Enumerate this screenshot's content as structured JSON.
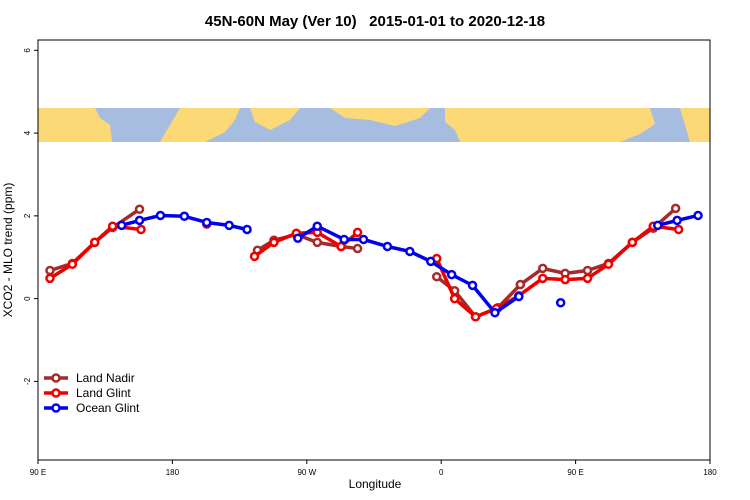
{
  "chart_data": {
    "type": "line",
    "title": "45N-60N May (Ver 10)   2015-01-01 to 2020-12-18",
    "x_label": "Longitude",
    "y_label": "XCO2 - MLO trend (ppm)",
    "xlim": [
      90,
      540
    ],
    "xticks": [
      {
        "value": 90,
        "label": "90 E"
      },
      {
        "value": 180,
        "label": "180"
      },
      {
        "value": 270,
        "label": "90 W"
      },
      {
        "value": 360,
        "label": "0"
      },
      {
        "value": 450,
        "label": "90 E"
      },
      {
        "value": 540,
        "label": "180"
      }
    ],
    "ylim": [
      -3.9,
      6.25
    ],
    "yticks": [
      -2,
      0,
      2,
      4,
      6
    ],
    "legend": "bottom-left",
    "series": [
      {
        "name": "Land Nadir",
        "color": "#a52a2a",
        "x": [
          98,
          113,
          128,
          140,
          158,
          null,
          237,
          248,
          263,
          277,
          293,
          304,
          null,
          357,
          369,
          383,
          398,
          413,
          428,
          443,
          458,
          472,
          488,
          502,
          517
        ],
        "values": [
          0.68,
          0.85,
          1.36,
          1.72,
          2.16,
          null,
          1.17,
          1.41,
          1.55,
          1.36,
          1.26,
          1.21,
          null,
          0.53,
          0.19,
          -0.44,
          -0.22,
          0.34,
          0.73,
          0.61,
          0.68,
          0.85,
          1.36,
          1.7,
          2.18
        ]
      },
      {
        "name": "Land Glint",
        "color": "#ee0000",
        "x": [
          98,
          113,
          128,
          140,
          159,
          null,
          203,
          null,
          235,
          248,
          263,
          277,
          293,
          304,
          null,
          357,
          369,
          383,
          397,
          412,
          428,
          443,
          458,
          472,
          488,
          502,
          519
        ],
        "values": [
          0.49,
          0.83,
          1.36,
          1.75,
          1.67,
          null,
          1.8,
          null,
          1.02,
          1.36,
          1.58,
          1.6,
          1.26,
          1.6,
          null,
          0.97,
          0.0,
          -0.44,
          -0.24,
          0.07,
          0.49,
          0.46,
          0.49,
          0.83,
          1.36,
          1.75,
          1.67
        ]
      },
      {
        "name": "Ocean Glint",
        "color": "#0000ee",
        "x": [
          146,
          158,
          172,
          188,
          203,
          218,
          230,
          null,
          264,
          277,
          295,
          308,
          324,
          339,
          353,
          367,
          381,
          396,
          412,
          null,
          440,
          null,
          505,
          518,
          532
        ],
        "values": [
          1.77,
          1.89,
          2.01,
          1.99,
          1.84,
          1.77,
          1.67,
          null,
          1.46,
          1.75,
          1.43,
          1.43,
          1.26,
          1.14,
          0.9,
          0.58,
          0.32,
          -0.34,
          0.05,
          null,
          -0.1,
          null,
          1.77,
          1.89,
          2.01
        ]
      }
    ]
  }
}
